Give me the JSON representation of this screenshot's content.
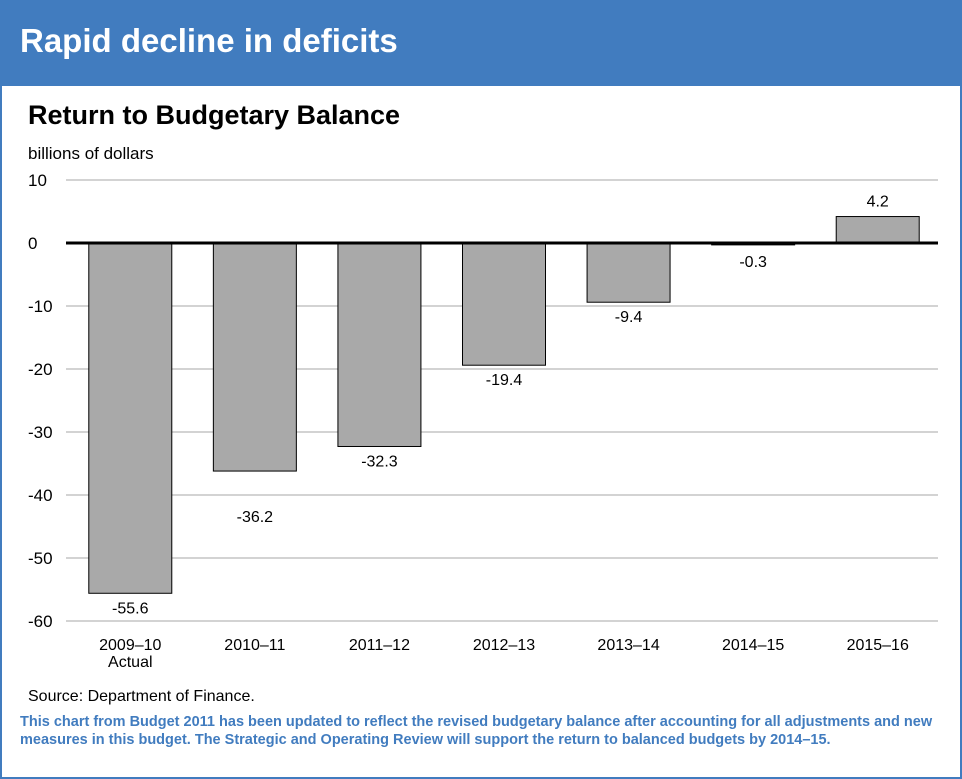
{
  "header": {
    "title": "Rapid decline in deficits"
  },
  "colors": {
    "header_band": "#417cbf",
    "bar_fill": "#a9a9a9",
    "note_text": "#417cbf"
  },
  "chart_data": {
    "type": "bar",
    "title": "Return to Budgetary Balance",
    "ylabel": "billions of dollars",
    "xlabel": "",
    "categories": [
      "2009–10|Actual",
      "2010–11",
      "2011–12",
      "2012–13",
      "2013–14",
      "2014–15",
      "2015–16"
    ],
    "values": [
      -55.6,
      -36.2,
      -32.3,
      -19.4,
      -9.4,
      -0.3,
      4.2
    ],
    "data_labels": [
      "-55.6",
      "-36.2",
      "-32.3",
      "-19.4",
      "-9.4",
      "-0.3",
      "4.2"
    ],
    "ylim": [
      -60,
      10
    ],
    "yticks": [
      10,
      0,
      -10,
      -20,
      -30,
      -40,
      -50,
      -60
    ],
    "grid": true,
    "legend": "none"
  },
  "source": "Source: Department of Finance.",
  "note": "This chart from Budget 2011 has been updated to reflect the revised budgetary balance after accounting for all adjustments and new measures in this budget. The Strategic and Operating Review will support the return to balanced budgets by 2014–15."
}
